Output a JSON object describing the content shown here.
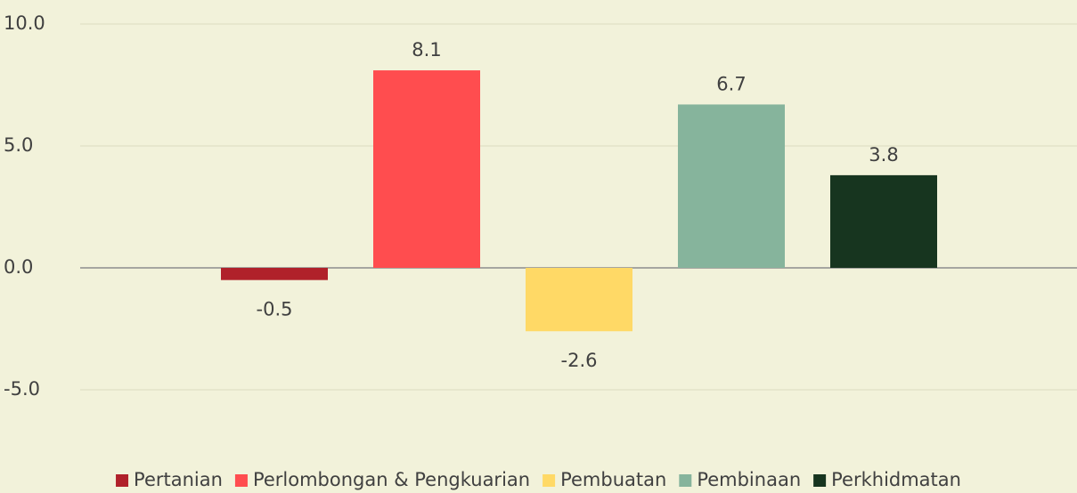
{
  "chart_data": {
    "type": "bar",
    "series": [
      {
        "name": "Pertanian",
        "color": "#b0212a",
        "values": [
          -0.5
        ]
      },
      {
        "name": "Perlombongan & Pengkuarian",
        "color": "#ff4d4f",
        "values": [
          8.1
        ]
      },
      {
        "name": "Pembuatan",
        "color": "#ffd966",
        "values": [
          -2.6
        ]
      },
      {
        "name": "Pembinaan",
        "color": "#86b49c",
        "values": [
          6.7
        ]
      },
      {
        "name": "Perkhidmatan",
        "color": "#17351f",
        "values": [
          3.8
        ]
      }
    ],
    "ylim": [
      -5,
      10
    ],
    "yticks": [
      {
        "value": -5,
        "label": "-5.0"
      },
      {
        "value": 0,
        "label": "0.0"
      },
      {
        "value": 5,
        "label": "5.0"
      },
      {
        "value": 10,
        "label": "10.0"
      }
    ],
    "grid": true,
    "legend": "bottom"
  }
}
